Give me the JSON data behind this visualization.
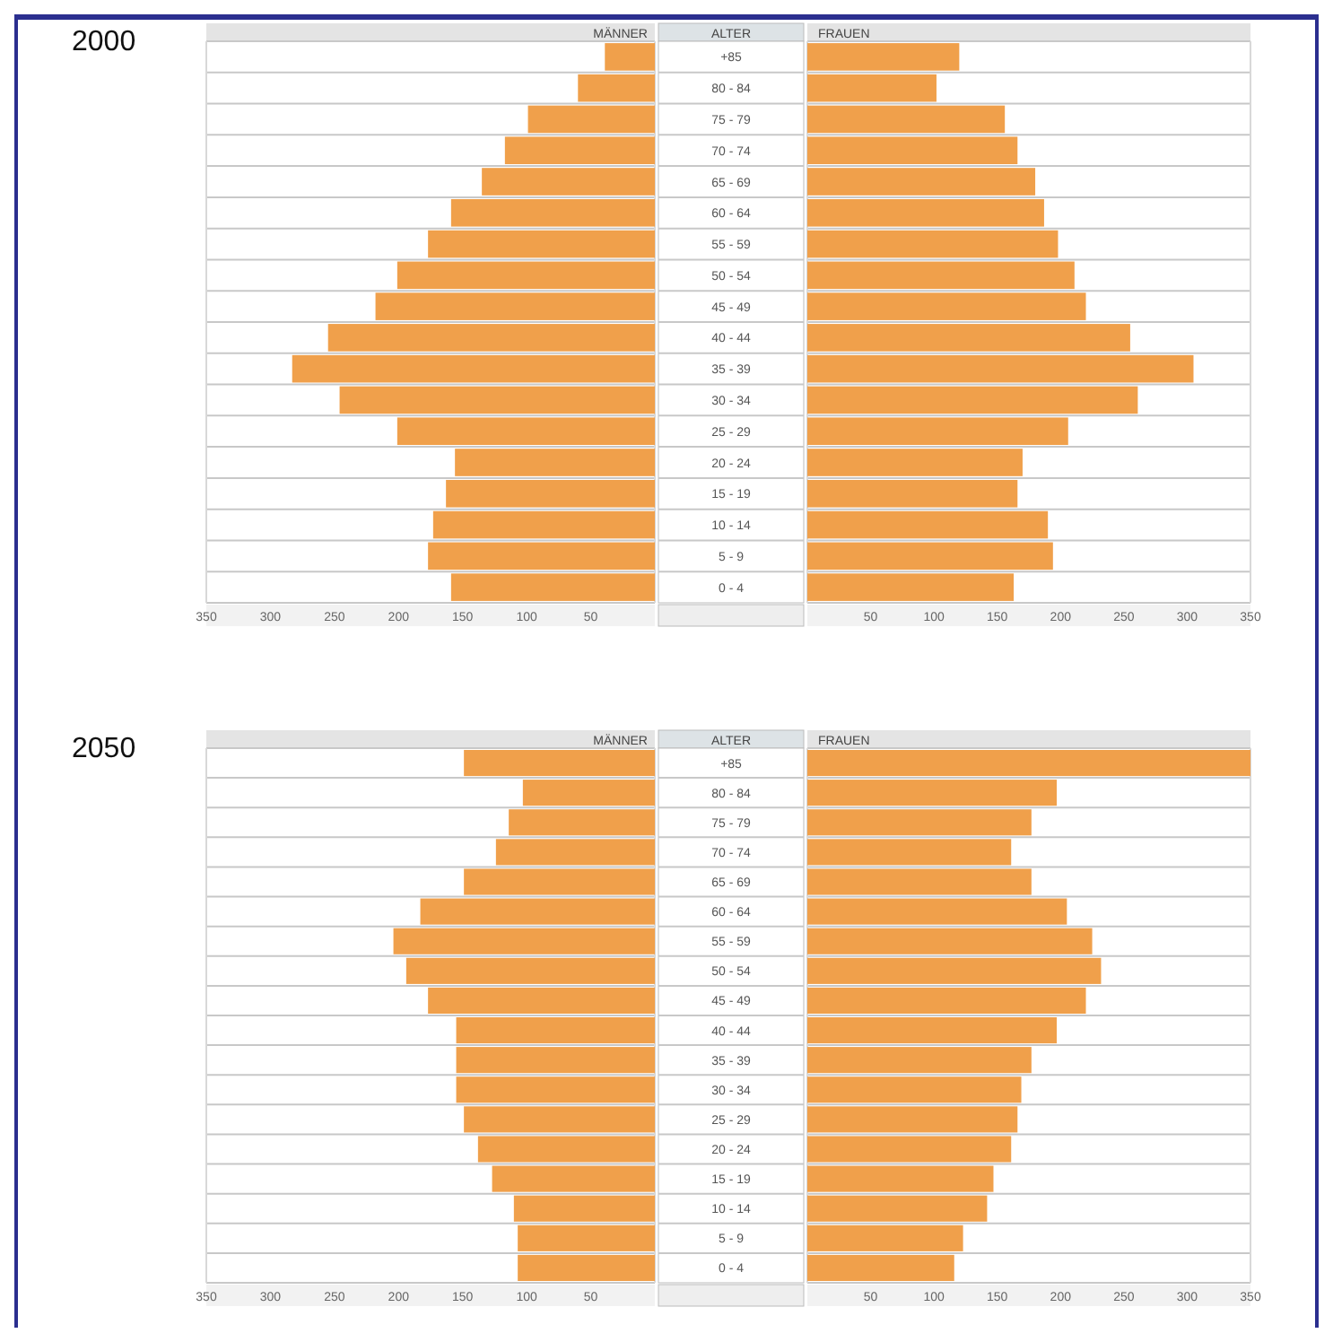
{
  "chart_data": [
    {
      "type": "bar",
      "orientation": "horizontal",
      "title": "MÄNNER",
      "annotations": [
        "2000"
      ],
      "values": [
        39,
        60,
        99,
        117,
        135,
        159,
        177,
        201,
        218,
        255,
        283,
        246,
        201,
        156,
        163,
        173,
        177,
        159
      ],
      "color": "#f0a04b",
      "xlim": [
        350,
        0
      ],
      "xticks": [
        350,
        300,
        250,
        200,
        150,
        100,
        50
      ],
      "tick_labels": "x",
      "grid": "y"
    },
    {
      "type": "bar",
      "orientation": "horizontal",
      "title": "FRAUEN",
      "ylabel": "ALTER",
      "categories": [
        "+85",
        "80 - 84",
        "75 - 79",
        "70 - 74",
        "65 - 69",
        "60 - 64",
        "55 - 59",
        "50 - 54",
        "45 - 49",
        "40 - 44",
        "35 - 39",
        "30 - 34",
        "25 - 29",
        "20 - 24",
        "15 - 19",
        "10 - 14",
        "5 - 9",
        "0 - 4"
      ],
      "values": [
        120,
        102,
        156,
        166,
        180,
        187,
        198,
        211,
        220,
        255,
        305,
        261,
        206,
        170,
        166,
        190,
        194,
        163
      ],
      "color": "#f0a04b",
      "xlim": [
        0,
        350
      ],
      "xticks": [
        50,
        100,
        150,
        200,
        250,
        300,
        350
      ],
      "grid": "y"
    },
    {
      "type": "bar",
      "orientation": "horizontal",
      "title": "MÄNNER",
      "annotations": [
        "2050"
      ],
      "values": [
        149,
        103,
        114,
        124,
        149,
        183,
        204,
        194,
        177,
        155,
        155,
        155,
        149,
        138,
        127,
        110,
        107,
        107
      ],
      "color": "#f0a04b",
      "xlim": [
        350,
        0
      ],
      "xticks": [
        350,
        300,
        250,
        200,
        150,
        100,
        50
      ],
      "tick_labels": "x",
      "grid": "y"
    },
    {
      "type": "bar",
      "orientation": "horizontal",
      "title": "FRAUEN",
      "ylabel": "ALTER",
      "categories": [
        "+85",
        "80 - 84",
        "75 - 79",
        "70 - 74",
        "65 - 69",
        "60 - 64",
        "55 - 59",
        "50 - 54",
        "45 - 49",
        "40 - 44",
        "35 - 39",
        "30 - 34",
        "25 - 29",
        "20 - 24",
        "15 - 19",
        "10 - 14",
        "5 - 9",
        "0 - 4"
      ],
      "values": [
        350,
        197,
        177,
        161,
        177,
        205,
        225,
        232,
        220,
        197,
        177,
        169,
        166,
        161,
        147,
        142,
        123,
        116
      ],
      "color": "#f0a04b",
      "xlim": [
        0,
        350
      ],
      "xticks": [
        50,
        100,
        150,
        200,
        250,
        300,
        350
      ],
      "grid": "y"
    }
  ]
}
